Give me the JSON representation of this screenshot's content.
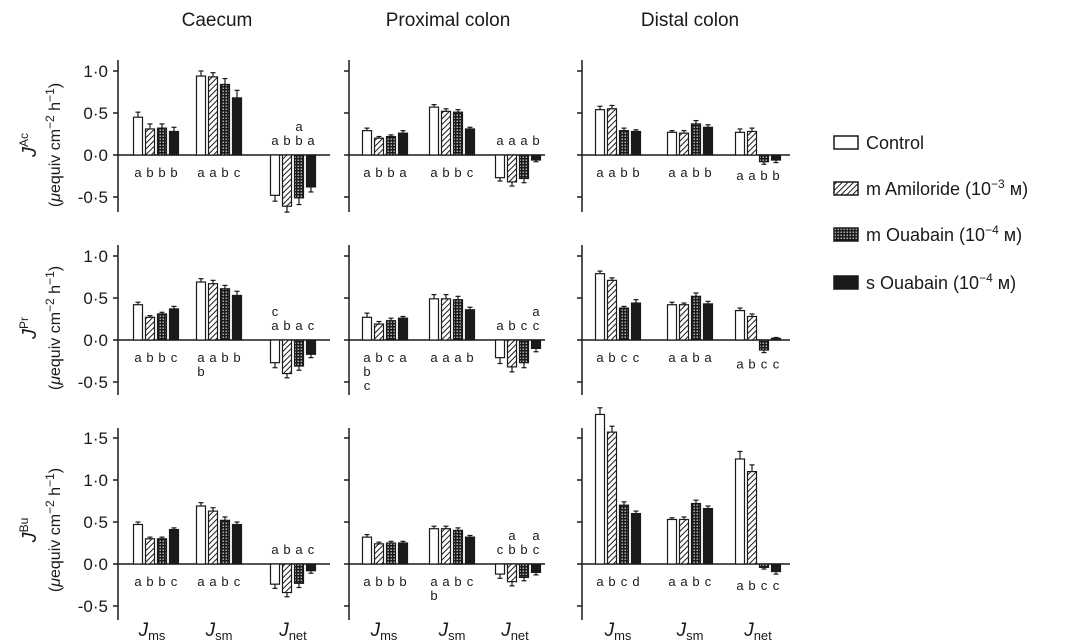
{
  "figure": {
    "columns": [
      "Caecum",
      "Proximal colon",
      "Distal colon"
    ],
    "rows": [
      {
        "symbol": "J",
        "superscript": "Ac",
        "unit_prefix": "(",
        "unit_mu": "μ",
        "unit_text": "equiv cm",
        "unit_exp1": "−2",
        "unit_mid": " h",
        "unit_exp2": "−1",
        "unit_suffix": ")",
        "ticks": [
          "1·0",
          "0·5",
          "0·0",
          "-0·5"
        ]
      },
      {
        "symbol": "J",
        "superscript": "Pr",
        "unit_prefix": "(",
        "unit_mu": "μ",
        "unit_text": "equiv cm",
        "unit_exp1": "−2",
        "unit_mid": " h",
        "unit_exp2": "−1",
        "unit_suffix": ")",
        "ticks": [
          "1·0",
          "0·5",
          "0·0",
          "-0·5"
        ]
      },
      {
        "symbol": "J",
        "superscript": "Bu",
        "unit_prefix": "(",
        "unit_mu": "μ",
        "unit_text": "equiv cm",
        "unit_exp1": "−2",
        "unit_mid": " h",
        "unit_exp2": "−1",
        "unit_suffix": ")",
        "ticks": [
          "1·5",
          "1·0",
          "0·5",
          "0·0",
          "-0·5"
        ]
      }
    ],
    "x_groups": [
      {
        "main": "J",
        "sub": "ms"
      },
      {
        "main": "J",
        "sub": "sm"
      },
      {
        "main": "J",
        "sub": "net"
      }
    ]
  },
  "legend": [
    {
      "label": "Control",
      "exp": ""
    },
    {
      "label": "m Amiloride (10",
      "exp": "−3",
      "tail": " м)"
    },
    {
      "label": "m Ouabain (10",
      "exp": "−4",
      "tail": " м)"
    },
    {
      "label": "s Ouabain (10",
      "exp": "−4",
      "tail": " м)"
    }
  ],
  "chart_data": {
    "type": "bar",
    "layout": "3x3 panel grid (rows: JAc, JPr, JBu; columns: Caecum, Proximal colon, Distal colon)",
    "series": [
      {
        "name": "Control",
        "fill": "white"
      },
      {
        "name": "m Amiloride (10−3 м)",
        "fill": "hatched"
      },
      {
        "name": "m Ouabain (10−4 м)",
        "fill": "dotted"
      },
      {
        "name": "s Ouabain (10−4 м)",
        "fill": "solid"
      }
    ],
    "categories": [
      "Jms",
      "Jsm",
      "Jnet"
    ],
    "panels": [
      {
        "row": "JAc",
        "column": "Caecum",
        "ylim": [
          -0.5,
          1.0
        ],
        "values": [
          [
            0.45,
            0.31,
            0.32,
            0.28
          ],
          [
            0.94,
            0.93,
            0.84,
            0.68
          ],
          [
            -0.48,
            -0.61,
            -0.51,
            -0.38
          ]
        ],
        "errors": [
          [
            0.06,
            0.06,
            0.05,
            0.05
          ],
          [
            0.06,
            0.05,
            0.07,
            0.09
          ],
          [
            0.07,
            0.07,
            0.08,
            0.06
          ]
        ],
        "letters_below": [
          "a b b b",
          "a a b c",
          ""
        ],
        "letters_above": [
          "",
          "",
          "a b b a"
        ],
        "letters_above2": [
          "",
          "",
          "a"
        ]
      },
      {
        "row": "JAc",
        "column": "Proximal colon",
        "ylim": [
          -0.5,
          1.0
        ],
        "values": [
          [
            0.29,
            0.2,
            0.22,
            0.26
          ],
          [
            0.57,
            0.52,
            0.51,
            0.31
          ],
          [
            -0.27,
            -0.32,
            -0.28,
            -0.06
          ]
        ],
        "errors": [
          [
            0.03,
            0.02,
            0.02,
            0.03
          ],
          [
            0.03,
            0.03,
            0.03,
            0.02
          ],
          [
            0.04,
            0.05,
            0.05,
            0.02
          ]
        ],
        "letters_below": [
          "a b b a",
          "a b b c",
          ""
        ],
        "letters_above": [
          "",
          "",
          "a a a b"
        ],
        "letters_above2": [
          "",
          "",
          ""
        ]
      },
      {
        "row": "JAc",
        "column": "Distal colon",
        "ylim": [
          -0.5,
          1.0
        ],
        "values": [
          [
            0.54,
            0.55,
            0.29,
            0.28
          ],
          [
            0.27,
            0.26,
            0.37,
            0.33
          ],
          [
            0.27,
            0.28,
            -0.08,
            -0.06
          ]
        ],
        "errors": [
          [
            0.04,
            0.04,
            0.03,
            0.02
          ],
          [
            0.02,
            0.03,
            0.04,
            0.03
          ],
          [
            0.04,
            0.04,
            0.03,
            0.03
          ]
        ],
        "letters_below": [
          "a a b b",
          "a a b b",
          "a a b b"
        ],
        "letters_above": [
          "",
          "",
          ""
        ],
        "letters_above2": [
          "",
          "",
          ""
        ]
      },
      {
        "row": "JPr",
        "column": "Caecum",
        "ylim": [
          -0.5,
          1.0
        ],
        "values": [
          [
            0.42,
            0.27,
            0.31,
            0.37
          ],
          [
            0.69,
            0.67,
            0.61,
            0.53
          ],
          [
            -0.27,
            -0.4,
            -0.31,
            -0.17
          ]
        ],
        "errors": [
          [
            0.03,
            0.02,
            0.02,
            0.03
          ],
          [
            0.04,
            0.04,
            0.04,
            0.05
          ],
          [
            0.06,
            0.05,
            0.05,
            0.04
          ]
        ],
        "letters_below": [
          "a b b c",
          "a a b b",
          ""
        ],
        "letters_below2": [
          "",
          "b",
          ""
        ],
        "letters_above": [
          "",
          "",
          "a b a c"
        ],
        "letters_above2": [
          "",
          "",
          "c"
        ]
      },
      {
        "row": "JPr",
        "column": "Proximal colon",
        "ylim": [
          -0.5,
          1.0
        ],
        "values": [
          [
            0.27,
            0.19,
            0.23,
            0.26
          ],
          [
            0.49,
            0.49,
            0.48,
            0.36
          ],
          [
            -0.21,
            -0.32,
            -0.27,
            -0.1
          ]
        ],
        "errors": [
          [
            0.05,
            0.03,
            0.03,
            0.02
          ],
          [
            0.05,
            0.05,
            0.04,
            0.03
          ],
          [
            0.07,
            0.06,
            0.06,
            0.04
          ]
        ],
        "letters_below": [
          "a b c a",
          "a a a b",
          ""
        ],
        "letters_below2": [
          "b",
          "",
          ""
        ],
        "letters_below3": [
          "c",
          "",
          ""
        ],
        "letters_above": [
          "",
          "",
          "a b c c"
        ],
        "letters_above2": [
          "",
          "",
          "a"
        ]
      },
      {
        "row": "JPr",
        "column": "Distal colon",
        "ylim": [
          -0.5,
          1.0
        ],
        "values": [
          [
            0.79,
            0.71,
            0.38,
            0.44
          ],
          [
            0.42,
            0.42,
            0.52,
            0.43
          ],
          [
            0.35,
            0.28,
            -0.12,
            0.02
          ]
        ],
        "errors": [
          [
            0.03,
            0.03,
            0.02,
            0.04
          ],
          [
            0.03,
            0.02,
            0.04,
            0.03
          ],
          [
            0.03,
            0.03,
            0.03,
            0.01
          ]
        ],
        "letters_below": [
          "a b c c",
          "a a b a",
          "a b c c"
        ],
        "letters_above": [
          "",
          "",
          ""
        ],
        "letters_above2": [
          "",
          "",
          ""
        ]
      },
      {
        "row": "JBu",
        "column": "Caecum",
        "ylim": [
          -0.5,
          1.5
        ],
        "values": [
          [
            0.47,
            0.3,
            0.3,
            0.41
          ],
          [
            0.69,
            0.63,
            0.52,
            0.47
          ],
          [
            -0.24,
            -0.34,
            -0.23,
            -0.08
          ]
        ],
        "errors": [
          [
            0.03,
            0.02,
            0.02,
            0.02
          ],
          [
            0.04,
            0.04,
            0.04,
            0.03
          ],
          [
            0.05,
            0.05,
            0.05,
            0.03
          ]
        ],
        "letters_below": [
          "a b b c",
          "a a b c",
          ""
        ],
        "letters_above": [
          "",
          "",
          "a b a c"
        ],
        "letters_above2": [
          "",
          "",
          ""
        ]
      },
      {
        "row": "JBu",
        "column": "Proximal colon",
        "ylim": [
          -0.5,
          1.5
        ],
        "values": [
          [
            0.32,
            0.24,
            0.25,
            0.25
          ],
          [
            0.42,
            0.42,
            0.4,
            0.32
          ],
          [
            -0.12,
            -0.21,
            -0.16,
            -0.1
          ]
        ],
        "errors": [
          [
            0.03,
            0.02,
            0.02,
            0.02
          ],
          [
            0.03,
            0.03,
            0.03,
            0.02
          ],
          [
            0.05,
            0.05,
            0.04,
            0.03
          ]
        ],
        "letters_below": [
          "a b b b",
          "a a b c",
          ""
        ],
        "letters_below2": [
          "",
          "b",
          ""
        ],
        "letters_above": [
          "",
          "",
          "c b b c"
        ],
        "letters_above2": [
          "",
          "",
          "a a"
        ]
      },
      {
        "row": "JBu",
        "column": "Distal colon",
        "ylim": [
          -0.5,
          1.5
        ],
        "values": [
          [
            1.78,
            1.57,
            0.7,
            0.6
          ],
          [
            0.53,
            0.53,
            0.72,
            0.66
          ],
          [
            1.25,
            1.1,
            -0.04,
            -0.09
          ]
        ],
        "errors": [
          [
            0.08,
            0.07,
            0.04,
            0.03
          ],
          [
            0.02,
            0.03,
            0.04,
            0.03
          ],
          [
            0.09,
            0.08,
            0.02,
            0.03
          ]
        ],
        "letters_below": [
          "a b c d",
          "a a b c",
          "a b c c"
        ],
        "letters_above": [
          "",
          "",
          ""
        ],
        "letters_above2": [
          "",
          "",
          ""
        ]
      }
    ]
  }
}
